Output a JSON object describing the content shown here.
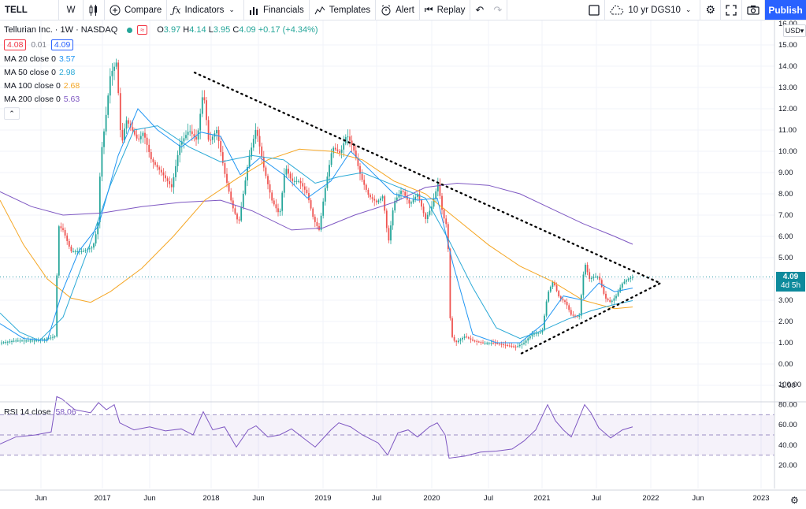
{
  "toolbar": {
    "symbol": "TELL",
    "interval": "W",
    "compare_label": "Compare",
    "indicators_label": "Indicators",
    "financials_label": "Financials",
    "templates_label": "Templates",
    "alert_label": "Alert",
    "replay_label": "Replay",
    "overlay_label": "10 yr DGS10",
    "publish_label": "Publish"
  },
  "legend": {
    "title": "Tellurian Inc. · 1W · NASDAQ",
    "wave_glyph": "≈",
    "open_label": "O",
    "open": "3.97",
    "high_label": "H",
    "high": "4.14",
    "low_label": "L",
    "low": "3.95",
    "close_label": "C",
    "close": "4.09",
    "change": "+0.17 (+4.34%)",
    "bid": "4.08",
    "spread": "0.01",
    "ask": "4.09",
    "ma": [
      {
        "label": "MA 20 close 0",
        "value": "3.57",
        "color": "#2196f3"
      },
      {
        "label": "MA 50 close 0",
        "value": "2.98",
        "color": "#2aa9d6"
      },
      {
        "label": "MA 100 close 0",
        "value": "2.68",
        "color": "#f5a623"
      },
      {
        "label": "MA 200 close 0",
        "value": "5.63",
        "color": "#7e57c2"
      }
    ]
  },
  "rsi": {
    "label": "RSI 14 close",
    "value": "58.06"
  },
  "price_axis": {
    "currency": "USD",
    "ticks": [
      "16.00",
      "15.00",
      "14.00",
      "13.00",
      "12.00",
      "11.00",
      "10.00",
      "9.00",
      "8.00",
      "7.00",
      "6.00",
      "5.00",
      "4.00",
      "3.00",
      "2.00",
      "1.00",
      "0.00",
      "-1.00"
    ],
    "last_price": "4.09",
    "last_countdown": "4d 5h"
  },
  "rsi_axis": {
    "ticks": [
      "100.00",
      "80.00",
      "60.00",
      "40.00",
      "20.00"
    ]
  },
  "time_axis": {
    "ticks": [
      "Jun",
      "2017",
      "Jun",
      "2018",
      "Jun",
      "2019",
      "Jul",
      "2020",
      "Jul",
      "2021",
      "Jul",
      "2022",
      "Jun",
      "2023"
    ]
  },
  "colors": {
    "up": "#26a69a",
    "down": "#ef5350",
    "accent": "#2962ff",
    "rsi": "#7e57c2",
    "trendline": "#000000"
  },
  "icons": [
    "bar-style-icon",
    "compare-plus-icon",
    "indicators-fx-icon",
    "financials-icon",
    "templates-icon",
    "alert-icon",
    "replay-icon",
    "undo-icon",
    "redo-icon",
    "layout-square-icon",
    "cloud-icon",
    "settings-gear-icon",
    "fullscreen-icon",
    "camera-icon"
  ],
  "chart_data": {
    "type": "candlestick",
    "title": "Tellurian Inc. · 1W · NASDAQ",
    "ylim": [
      -1.5,
      16
    ],
    "series": [
      {
        "name": "MA 20 close 0",
        "last": 3.57
      },
      {
        "name": "MA 50 close 0",
        "last": 2.98
      },
      {
        "name": "MA 100 close 0",
        "last": 2.68
      },
      {
        "name": "MA 200 close 0",
        "last": 5.63
      }
    ],
    "last_close": 4.09
  }
}
